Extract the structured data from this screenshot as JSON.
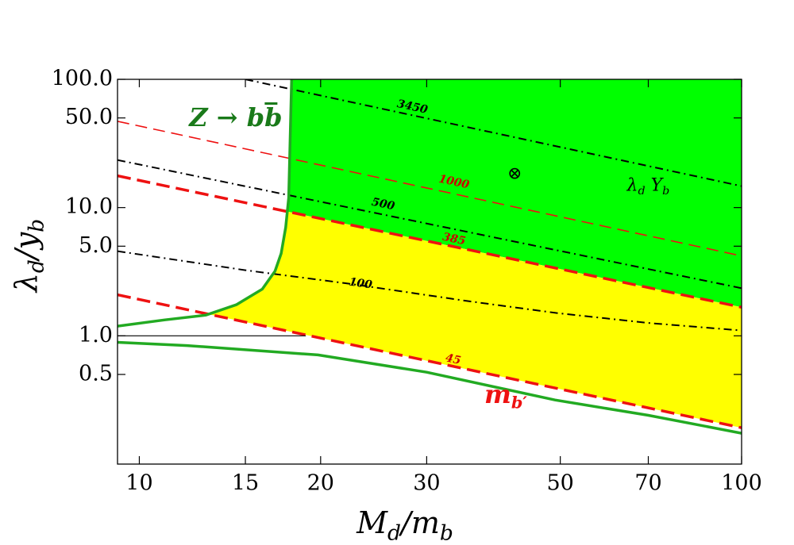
{
  "chart_data": {
    "type": "line",
    "xlabel": [
      {
        "text": "M"
      },
      {
        "sub": "d"
      },
      {
        "text": "/m"
      },
      {
        "sub": "b"
      }
    ],
    "ylabel": [
      {
        "text": "λ"
      },
      {
        "sub": "d"
      },
      {
        "text": "/y"
      },
      {
        "sub": "b"
      }
    ],
    "log_x": true,
    "log_y": true,
    "xlim": [
      9.2,
      100
    ],
    "ylim": [
      0.1,
      100
    ],
    "xticks": [
      10,
      15,
      20,
      30,
      50,
      70,
      100
    ],
    "yticks": [
      {
        "value": 100,
        "label": "100.0"
      },
      {
        "value": 50,
        "label": "50.0"
      },
      {
        "value": 10,
        "label": "10.0"
      },
      {
        "value": 5,
        "label": "5.0"
      },
      {
        "value": 1,
        "label": "1.0"
      },
      0.5
    ],
    "series": [
      {
        "name": "3450",
        "color": "#000000",
        "style": "dashdot",
        "width": 2,
        "x": [
          15,
          100
        ],
        "values": [
          100,
          14.7
        ],
        "label_at": [
          28.4,
          60.8
        ]
      },
      {
        "name": "1000",
        "color": "#ee1111",
        "style": "dashed",
        "width": 1.6,
        "x": [
          9.2,
          100
        ],
        "values": [
          47.1,
          4.2
        ],
        "label_at": [
          33.3,
          15.8
        ]
      },
      {
        "name": "500",
        "color": "#000000",
        "style": "dashdot",
        "width": 2,
        "x": [
          9.2,
          100
        ],
        "values": [
          23.5,
          2.35
        ],
        "label_at": [
          25.4,
          10.6
        ]
      },
      {
        "name": "385",
        "color": "#ee1111",
        "style": "dashed",
        "width": 3.5,
        "x": [
          9.2,
          100
        ],
        "values": [
          17.7,
          1.67
        ],
        "label_at": [
          33.3,
          5.66
        ]
      },
      {
        "name": "100",
        "color": "#000000",
        "style": "dashdot",
        "width": 2,
        "x": [
          9.2,
          15,
          22.3,
          35,
          49.1,
          70,
          100
        ],
        "values": [
          4.57,
          3.25,
          2.55,
          1.87,
          1.51,
          1.26,
          1.1
        ],
        "label_at": [
          23.3,
          2.55
        ]
      },
      {
        "name": "45",
        "color": "#ee1111",
        "style": "dashed",
        "width": 3.5,
        "x": [
          9.2,
          100
        ],
        "values": [
          2.09,
          0.192
        ],
        "label_at": [
          33.2,
          0.653
        ]
      },
      {
        "color": "#22aa22",
        "style": "solid",
        "width": 3.5,
        "x": [
          9.2,
          11,
          12.9,
          14.5,
          16.0,
          16.8,
          17.2,
          17.5,
          17.7,
          17.9
        ],
        "values": [
          1.19,
          1.33,
          1.45,
          1.75,
          2.31,
          3.2,
          4.39,
          7,
          11.9,
          100
        ]
      },
      {
        "color": "#22aa22",
        "style": "solid",
        "width": 3.5,
        "x": [
          9.2,
          12,
          19.8,
          30,
          49,
          70,
          100
        ],
        "values": [
          0.89,
          0.84,
          0.71,
          0.52,
          0.316,
          0.24,
          0.174
        ]
      },
      {
        "color": "#000000",
        "style": "solid",
        "width": 1.2,
        "x": [
          9.2,
          18.9
        ],
        "values": [
          1,
          1
        ]
      }
    ],
    "regions": [
      {
        "color": "#00ff00"
      },
      {
        "color": "#ffff00"
      }
    ],
    "annotations": [
      {
        "text": "Z → bb̅",
        "color": "#1a7a1a",
        "at": [
          12.1,
          49.1
        ]
      },
      {
        "text": "m",
        "sub": "b′",
        "color": "#ee1111",
        "at": [
          37.4,
          0.34
        ]
      },
      {
        "text": "λ",
        "sub": "d",
        "text2": " Y",
        "sub2": "b",
        "color": "#000000",
        "at": [
          64.5,
          14.7
        ]
      }
    ],
    "marker": {
      "symbol": "⊗",
      "at": [
        42.0,
        18.2
      ]
    }
  }
}
